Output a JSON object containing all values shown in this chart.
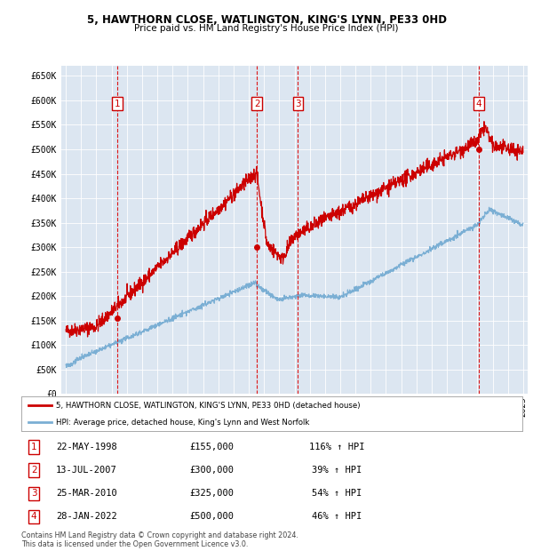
{
  "title1": "5, HAWTHORN CLOSE, WATLINGTON, KING'S LYNN, PE33 0HD",
  "title2": "Price paid vs. HM Land Registry's House Price Index (HPI)",
  "background_color": "#dce6f1",
  "plot_bg": "#dce6f1",
  "red_line_color": "#cc0000",
  "blue_line_color": "#7bafd4",
  "transactions": [
    {
      "num": 1,
      "date_str": "22-MAY-1998",
      "date_x": 1998.38,
      "price": 155000,
      "hpi_pct": "116%",
      "arrow": "↑"
    },
    {
      "num": 2,
      "date_str": "13-JUL-2007",
      "date_x": 2007.53,
      "price": 300000,
      "hpi_pct": "39%",
      "arrow": "↑"
    },
    {
      "num": 3,
      "date_str": "25-MAR-2010",
      "date_x": 2010.23,
      "price": 325000,
      "hpi_pct": "54%",
      "arrow": "↑"
    },
    {
      "num": 4,
      "date_str": "28-JAN-2022",
      "date_x": 2022.08,
      "price": 500000,
      "hpi_pct": "46%",
      "arrow": "↑"
    }
  ],
  "legend_red": "5, HAWTHORN CLOSE, WATLINGTON, KING'S LYNN, PE33 0HD (detached house)",
  "legend_blue": "HPI: Average price, detached house, King's Lynn and West Norfolk",
  "footer1": "Contains HM Land Registry data © Crown copyright and database right 2024.",
  "footer2": "This data is licensed under the Open Government Licence v3.0.",
  "ylim": [
    0,
    670000
  ],
  "xlim_start": 1994.7,
  "xlim_end": 2025.3,
  "yticks": [
    0,
    50000,
    100000,
    150000,
    200000,
    250000,
    300000,
    350000,
    400000,
    450000,
    500000,
    550000,
    600000,
    650000
  ],
  "ytick_labels": [
    "£0",
    "£50K",
    "£100K",
    "£150K",
    "£200K",
    "£250K",
    "£300K",
    "£350K",
    "£400K",
    "£450K",
    "£500K",
    "£550K",
    "£600K",
    "£650K"
  ]
}
